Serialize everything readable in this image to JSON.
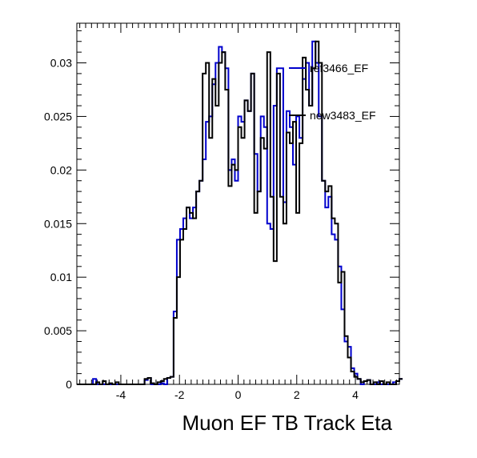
{
  "chart_data": {
    "type": "line",
    "subtype": "step-histogram",
    "title": "",
    "xlabel": "Muon EF TB Track Eta",
    "ylabel": "",
    "xlim": [
      -5.5,
      5.5
    ],
    "ylim": [
      0,
      0.0337
    ],
    "grid": false,
    "legend_position": "top-right",
    "x_ticks": [
      -4,
      -2,
      0,
      2,
      4
    ],
    "x_tick_labels": [
      "-4",
      "-2",
      "0",
      "2",
      "4"
    ],
    "y_ticks": [
      0,
      0.005,
      0.01,
      0.015,
      0.02,
      0.025,
      0.03
    ],
    "y_tick_labels": [
      "0",
      "0.005",
      "0.01",
      "0.015",
      "0.02",
      "0.025",
      "0.03"
    ],
    "bin_width": 0.11,
    "x_start": -5.5,
    "series": [
      {
        "name": "ref3466_EF",
        "color": "#0000cc",
        "values": [
          0,
          0,
          0,
          0,
          0,
          0.0005,
          0,
          0,
          0,
          0,
          0,
          0,
          0,
          0,
          0,
          0,
          0,
          0,
          0,
          0,
          0,
          0.0004,
          0.0006,
          0,
          0,
          0,
          0.0001,
          0,
          0.0006,
          0.0007,
          0.0068,
          0.0135,
          0.0145,
          0.0155,
          0.0165,
          0.0155,
          0.0165,
          0.018,
          0.019,
          0.021,
          0.0245,
          0.025,
          0.028,
          0.03,
          0.0315,
          0.031,
          0.0295,
          0.02,
          0.021,
          0.019,
          0.025,
          0.0245,
          0.0265,
          0.0255,
          0.029,
          0.0215,
          0.018,
          0.025,
          0.024,
          0.015,
          0.0145,
          0.026,
          0.0295,
          0.0295,
          0.017,
          0.0255,
          0.024,
          0.0205,
          0.025,
          0.023,
          0.0285,
          0.03,
          0.026,
          0.032,
          0.03,
          0.025,
          0.019,
          0.0165,
          0.0175,
          0.014,
          0.0135,
          0.011,
          0.007,
          0.004,
          0.0035,
          0.0015,
          0.001,
          0.0005,
          0,
          0.0003,
          0.0004,
          0,
          0,
          0.0002,
          0,
          0,
          0,
          0,
          0.0002,
          0.0003,
          0.0005
        ]
      },
      {
        "name": "new3483_EF",
        "color": "#000000",
        "values": [
          0,
          0,
          0,
          0,
          0,
          0,
          0.0002,
          0,
          0.0003,
          0,
          0.0001,
          0,
          0.0002,
          0,
          0,
          0,
          0,
          0,
          0,
          0,
          0,
          0.0005,
          0.0006,
          0.0001,
          0,
          0.0002,
          0.0003,
          0.0005,
          0.0006,
          0.0007,
          0.0062,
          0.01,
          0.0135,
          0.0145,
          0.0165,
          0.016,
          0.0155,
          0.018,
          0.019,
          0.029,
          0.03,
          0.023,
          0.0285,
          0.026,
          0.03,
          0.031,
          0.0275,
          0.0185,
          0.0205,
          0.02,
          0.024,
          0.023,
          0.0265,
          0.0255,
          0.029,
          0.016,
          0.018,
          0.023,
          0.022,
          0.031,
          0.0175,
          0.0115,
          0.029,
          0.0175,
          0.015,
          0.0235,
          0.0225,
          0.0245,
          0.016,
          0.0225,
          0.0305,
          0.0275,
          0.026,
          0.0295,
          0.032,
          0.03,
          0.019,
          0.018,
          0.0185,
          0.0155,
          0.015,
          0.0095,
          0.0105,
          0.0045,
          0.0025,
          0.0012,
          0.0007,
          0.0005,
          0.0002,
          0.0003,
          0.0004,
          0,
          0.0002,
          0,
          0.0003,
          0,
          0.0002,
          0,
          0,
          0.0003,
          0.0005
        ]
      }
    ]
  }
}
